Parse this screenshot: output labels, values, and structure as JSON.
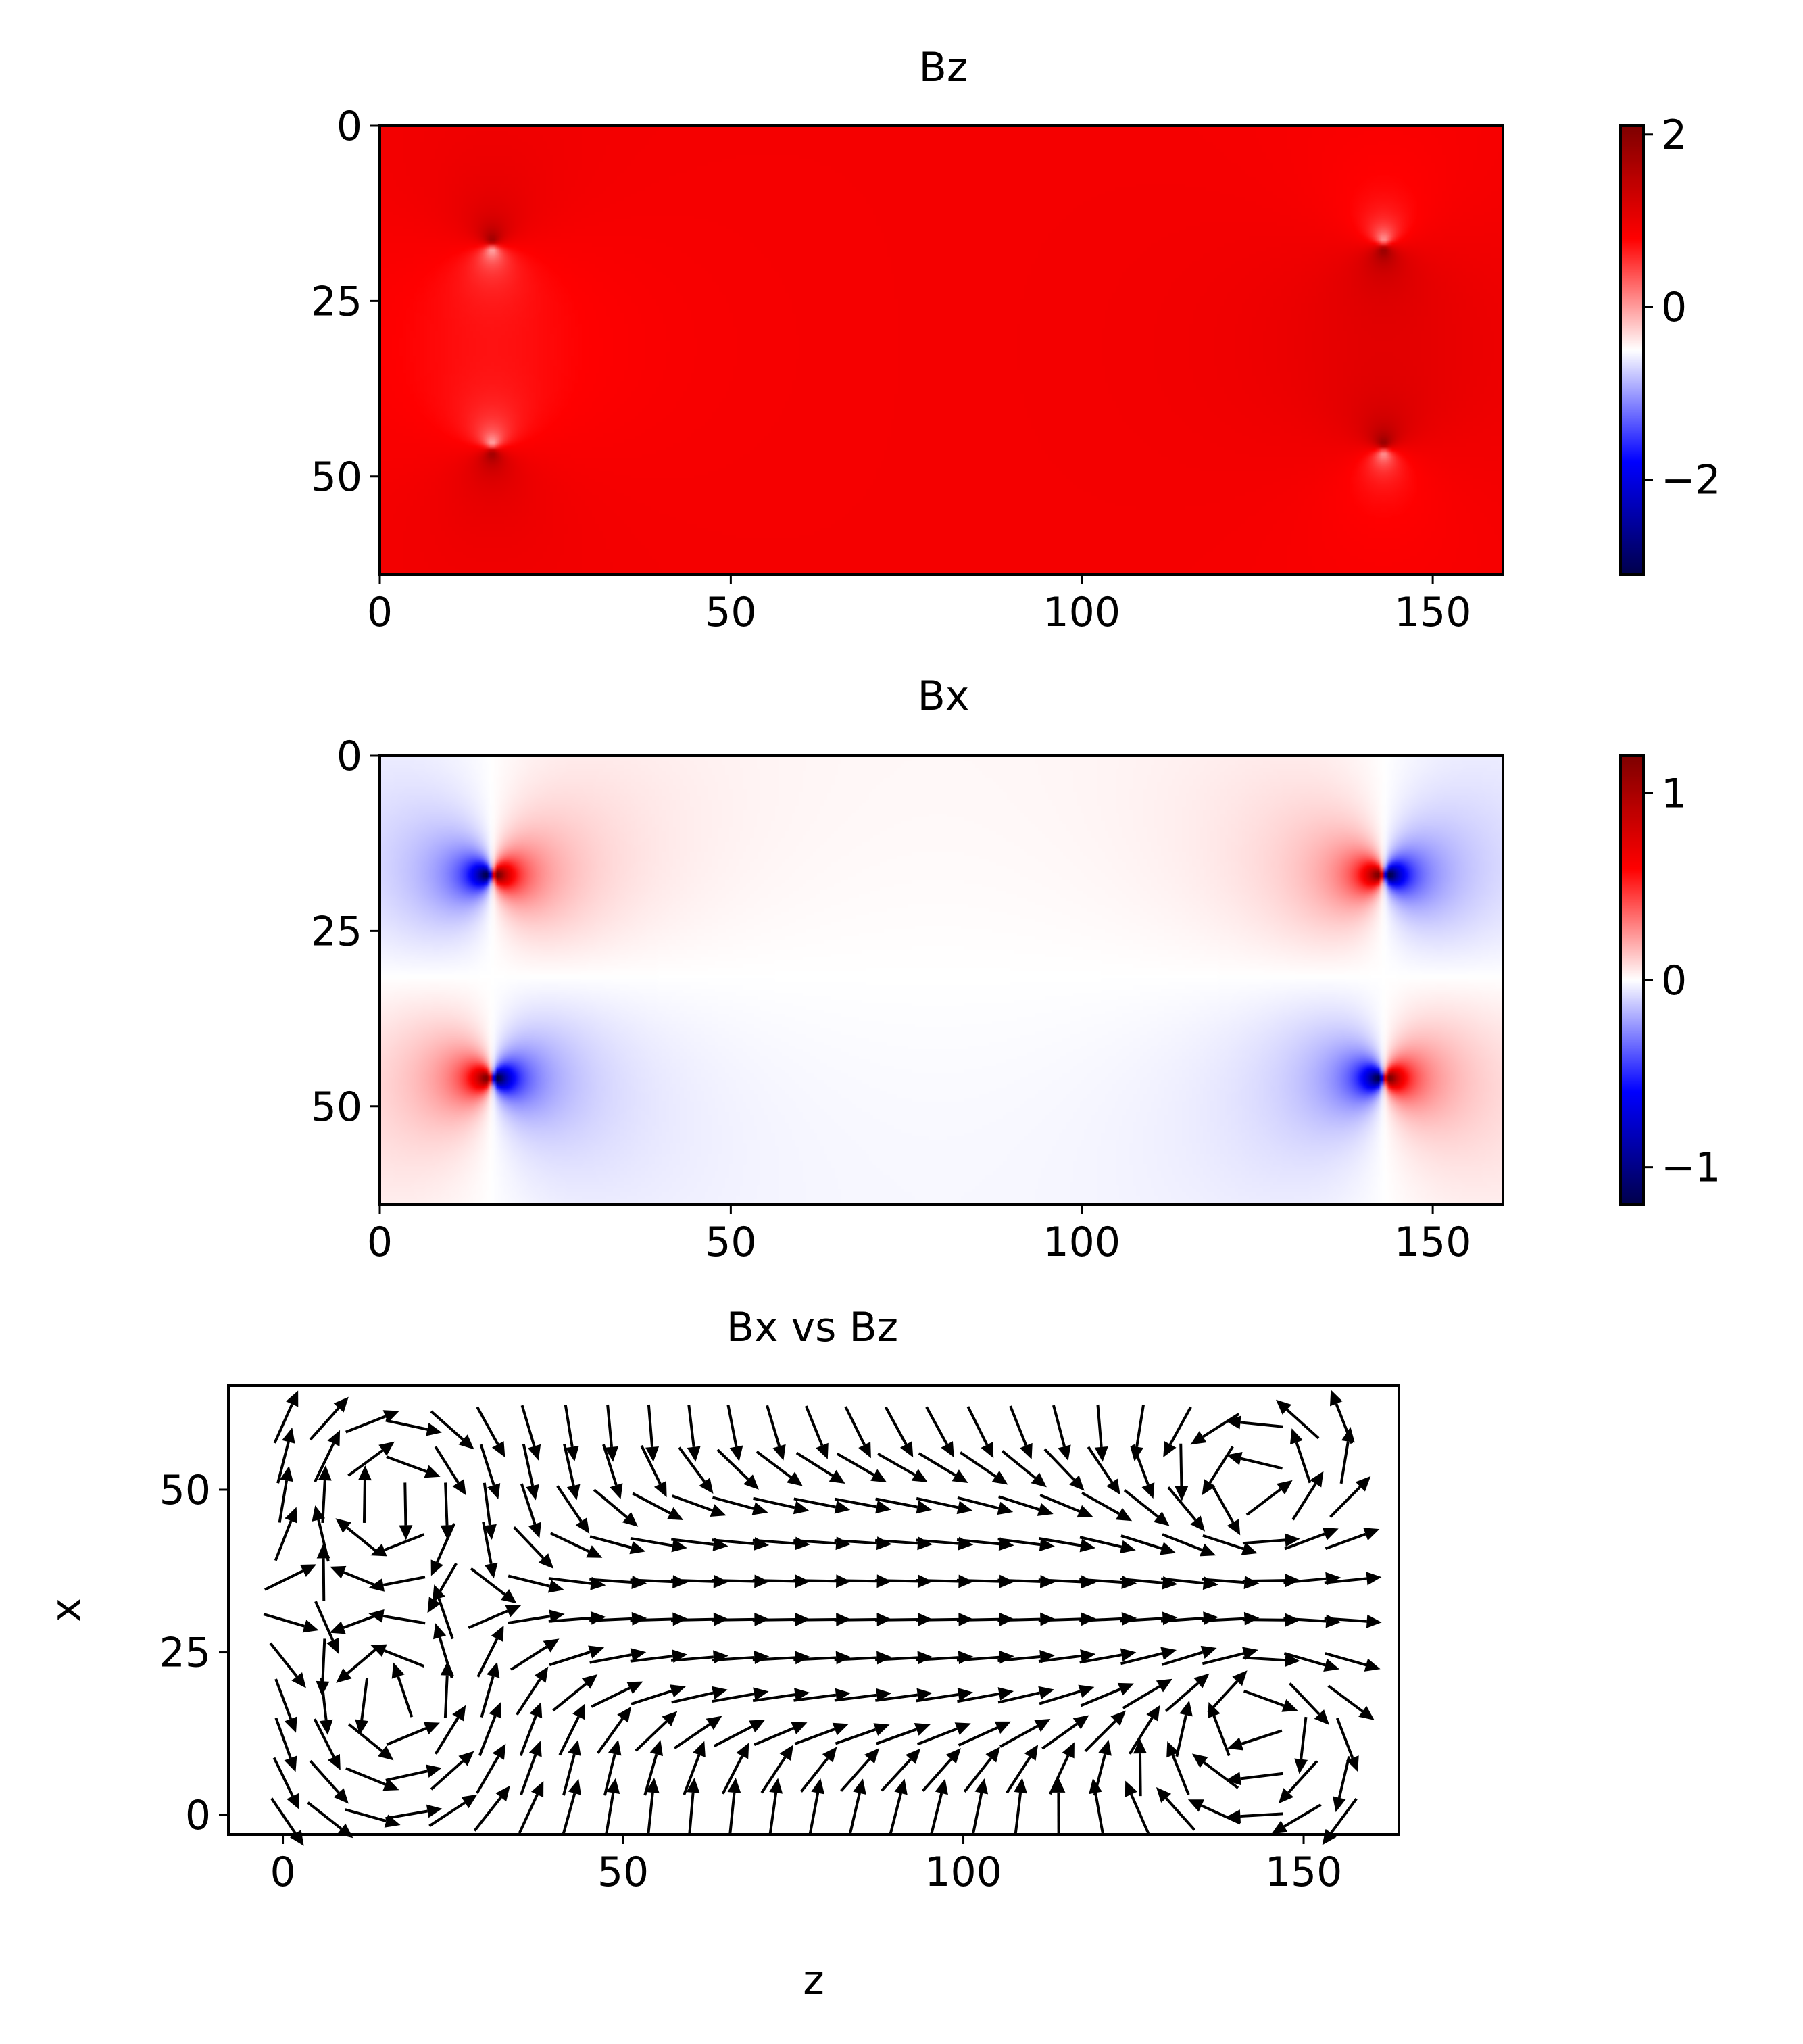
{
  "chart_data": [
    {
      "type": "heatmap",
      "title": "Bz",
      "xlabel": "",
      "ylabel": "",
      "xlim": [
        0,
        160
      ],
      "ylim": [
        64,
        0
      ],
      "xticks": [
        0,
        50,
        100,
        150
      ],
      "yticks": [
        0,
        25,
        50
      ],
      "colormap": "seismic",
      "colorbar": {
        "min": -3.1,
        "max": 2.1,
        "ticks": [
          2,
          0,
          -2
        ]
      },
      "features": [
        {
          "x": 16,
          "y": 17,
          "kind": "dipole"
        },
        {
          "x": 16,
          "y": 46,
          "kind": "dipole"
        },
        {
          "x": 143,
          "y": 17,
          "kind": "dipole"
        },
        {
          "x": 143,
          "y": 46,
          "kind": "dipole"
        }
      ]
    },
    {
      "type": "heatmap",
      "title": "Bx",
      "xlabel": "",
      "ylabel": "",
      "xlim": [
        0,
        160
      ],
      "ylim": [
        64,
        0
      ],
      "xticks": [
        0,
        50,
        100,
        150
      ],
      "yticks": [
        0,
        25,
        50
      ],
      "colormap": "seismic",
      "colorbar": {
        "min": -1.2,
        "max": 1.2,
        "ticks": [
          1,
          0,
          -1
        ]
      },
      "features": [
        {
          "x": 16,
          "y": 17,
          "kind": "dipole"
        },
        {
          "x": 16,
          "y": 46,
          "kind": "dipole"
        },
        {
          "x": 143,
          "y": 17,
          "kind": "dipole"
        },
        {
          "x": 143,
          "y": 46,
          "kind": "dipole"
        }
      ]
    },
    {
      "type": "quiver",
      "title": "Bx vs Bz",
      "xlabel": "z",
      "ylabel": "x",
      "xlim": [
        -8,
        164
      ],
      "ylim": [
        -3,
        66
      ],
      "xticks": [
        0,
        50,
        100,
        150
      ],
      "yticks": [
        0,
        25,
        50
      ],
      "grid_step": 6,
      "vortices": [
        {
          "z": 16,
          "x": 17,
          "sense": 1
        },
        {
          "z": 16,
          "x": 48,
          "sense": -1
        },
        {
          "z": 143,
          "x": 17,
          "sense": -1
        },
        {
          "z": 143,
          "x": 48,
          "sense": 1
        }
      ]
    }
  ]
}
